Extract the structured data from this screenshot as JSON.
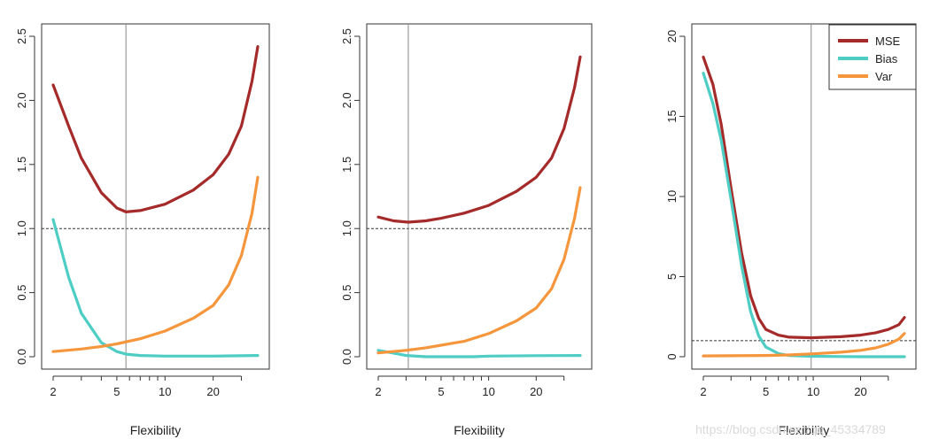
{
  "watermark": "https://blog.csdn.net/qq_45334789",
  "colors": {
    "MSE": "#a52a2a",
    "Bias": "#4ecdc4",
    "Var": "#f5963c"
  },
  "chart_data": [
    {
      "type": "line",
      "xlabel": "Flexibility",
      "xscale": "log",
      "xticks": [
        2,
        5,
        10,
        20
      ],
      "xlim": [
        2,
        38
      ],
      "ylim": [
        0,
        2.5
      ],
      "yticks": [
        "0.0",
        "0.5",
        "1.0",
        "1.5",
        "2.0",
        "2.5"
      ],
      "hline": 1.0,
      "vline": 5.7,
      "legend": false,
      "series": [
        {
          "key": "MSE",
          "x": [
            2,
            2.5,
            3,
            4,
            5,
            5.7,
            7,
            10,
            15,
            20,
            25,
            30,
            35,
            38
          ],
          "y": [
            2.12,
            1.8,
            1.55,
            1.28,
            1.16,
            1.13,
            1.14,
            1.19,
            1.3,
            1.42,
            1.58,
            1.8,
            2.15,
            2.42
          ]
        },
        {
          "key": "Bias",
          "x": [
            2,
            2.5,
            3,
            4,
            5,
            5.7,
            7,
            10,
            20,
            38
          ],
          "y": [
            1.07,
            0.62,
            0.34,
            0.11,
            0.04,
            0.02,
            0.01,
            0.005,
            0.005,
            0.01
          ]
        },
        {
          "key": "Var",
          "x": [
            2,
            3,
            4,
            5,
            7,
            10,
            15,
            20,
            25,
            30,
            35,
            38
          ],
          "y": [
            0.04,
            0.06,
            0.08,
            0.1,
            0.14,
            0.2,
            0.3,
            0.4,
            0.56,
            0.79,
            1.12,
            1.4
          ]
        }
      ]
    },
    {
      "type": "line",
      "xlabel": "Flexibility",
      "xscale": "log",
      "xticks": [
        2,
        5,
        10,
        20
      ],
      "xlim": [
        2,
        38
      ],
      "ylim": [
        0,
        2.5
      ],
      "yticks": [
        "0.0",
        "0.5",
        "1.0",
        "1.5",
        "2.0",
        "2.5"
      ],
      "hline": 1.0,
      "vline": 3.1,
      "legend": false,
      "series": [
        {
          "key": "MSE",
          "x": [
            2,
            2.5,
            3.1,
            4,
            5,
            7,
            10,
            15,
            20,
            25,
            30,
            35,
            38
          ],
          "y": [
            1.09,
            1.06,
            1.05,
            1.06,
            1.08,
            1.12,
            1.18,
            1.29,
            1.4,
            1.55,
            1.78,
            2.1,
            2.34
          ]
        },
        {
          "key": "Bias",
          "x": [
            2,
            3,
            4,
            5,
            8,
            10,
            20,
            38
          ],
          "y": [
            0.05,
            0.01,
            0.0,
            0.0,
            0.0,
            0.005,
            0.008,
            0.01
          ]
        },
        {
          "key": "Var",
          "x": [
            2,
            3,
            4,
            5,
            7,
            10,
            15,
            20,
            25,
            30,
            35,
            38
          ],
          "y": [
            0.03,
            0.05,
            0.07,
            0.09,
            0.12,
            0.18,
            0.28,
            0.38,
            0.53,
            0.76,
            1.08,
            1.32
          ]
        }
      ]
    },
    {
      "type": "line",
      "xlabel": "Flexibility",
      "xscale": "log",
      "xticks": [
        2,
        5,
        10,
        20
      ],
      "xlim": [
        2,
        38
      ],
      "ylim": [
        0,
        20
      ],
      "yticks": [
        "0",
        "5",
        "10",
        "15",
        "20"
      ],
      "hline": 1.0,
      "vline": 9.7,
      "legend": "top-right",
      "series": [
        {
          "key": "MSE",
          "x": [
            2,
            2.3,
            2.6,
            3,
            3.5,
            4,
            4.5,
            5,
            6,
            7,
            9.7,
            15,
            20,
            25,
            30,
            35,
            38
          ],
          "y": [
            18.7,
            17.0,
            14.5,
            10.5,
            6.5,
            3.8,
            2.4,
            1.7,
            1.35,
            1.22,
            1.18,
            1.25,
            1.35,
            1.5,
            1.7,
            2.0,
            2.45
          ]
        },
        {
          "key": "Bias",
          "x": [
            2,
            2.3,
            2.6,
            3,
            3.5,
            4,
            4.5,
            5,
            6,
            7,
            9.7,
            15,
            20,
            38
          ],
          "y": [
            17.7,
            15.8,
            13.5,
            9.8,
            5.7,
            2.8,
            1.3,
            0.6,
            0.2,
            0.08,
            0.03,
            0.01,
            0.0,
            0.0
          ]
        },
        {
          "key": "Var",
          "x": [
            2,
            3,
            5,
            7,
            10,
            15,
            20,
            25,
            30,
            35,
            38
          ],
          "y": [
            0.05,
            0.06,
            0.08,
            0.11,
            0.18,
            0.28,
            0.4,
            0.55,
            0.78,
            1.1,
            1.45
          ]
        }
      ]
    }
  ]
}
